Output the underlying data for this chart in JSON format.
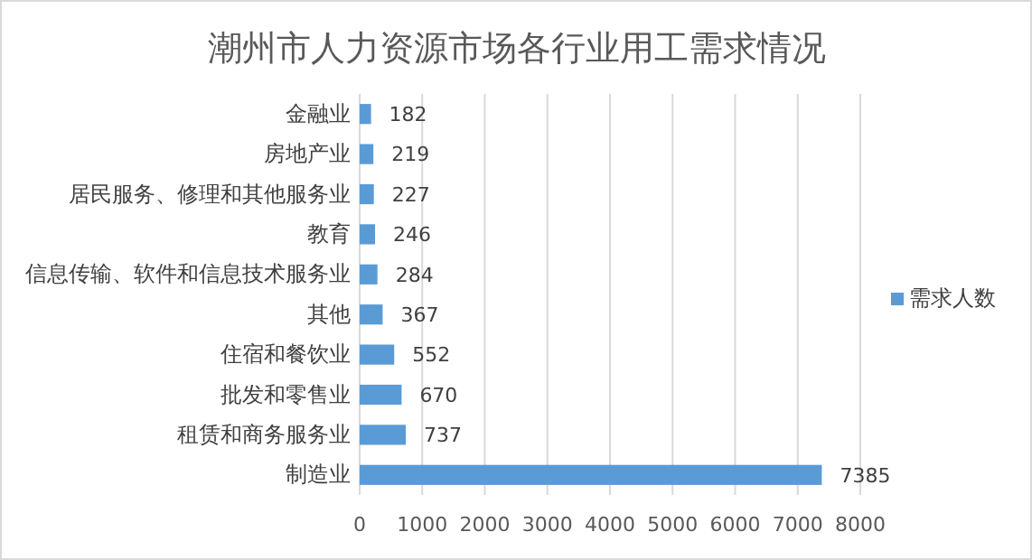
{
  "chart_data": {
    "type": "bar",
    "orientation": "horizontal",
    "title": "潮州市人力资源市场各行业用工需求情况",
    "categories": [
      "金融业",
      "房地产业",
      "居民服务、修理和其他服务业",
      "教育",
      "信息传输、软件和信息技术服务业",
      "其他",
      "住宿和餐饮业",
      "批发和零售业",
      "租赁和商务服务业",
      "制造业"
    ],
    "series": [
      {
        "name": "需求人数",
        "color": "#5b9bd5",
        "values": [
          182,
          219,
          227,
          246,
          284,
          367,
          552,
          670,
          737,
          7385
        ]
      }
    ],
    "xlim": [
      0,
      8000
    ],
    "xticks": [
      0,
      1000,
      2000,
      3000,
      4000,
      5000,
      6000,
      7000,
      8000
    ],
    "grid": "x",
    "legend": "right",
    "data_labels": true
  }
}
